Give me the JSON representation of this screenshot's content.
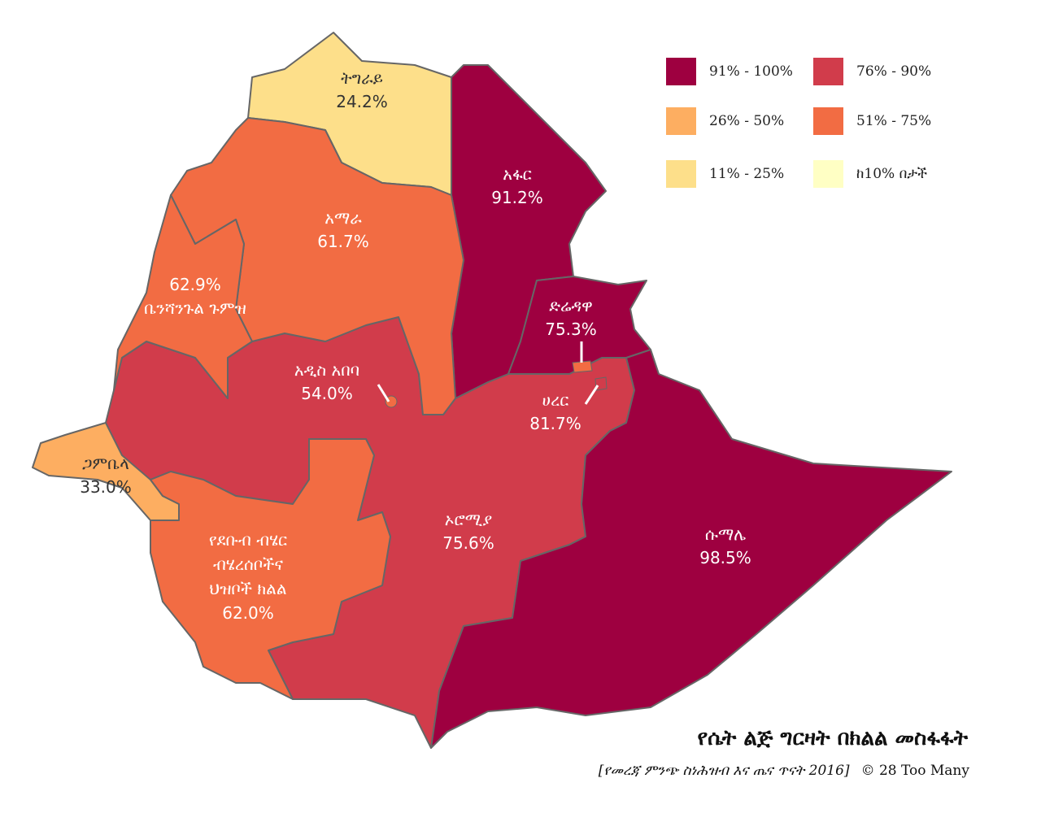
{
  "colors": {
    "c91_100": "#9e0040",
    "c76_90": "#d13c4b",
    "c51_75": "#f26c43",
    "c26_50": "#fdae61",
    "c11_25": "#fddf8a",
    "c0_10": "#ffffc4"
  },
  "legend": [
    {
      "label": "91% - 100%",
      "color": "#9e0040"
    },
    {
      "label": "76% - 90%",
      "color": "#d13c4b"
    },
    {
      "label": "26% - 50%",
      "color": "#fdae61"
    },
    {
      "label": "51% - 75%",
      "color": "#f26c43"
    },
    {
      "label": "11% - 25%",
      "color": "#fddf8a"
    },
    {
      "label": "ከ10% በታች",
      "color": "#ffffc4"
    }
  ],
  "regions": {
    "tigray": {
      "name": "ትግራይ",
      "value": "24.2%"
    },
    "afar": {
      "name": "አፋር",
      "value": "91.2%"
    },
    "amhara": {
      "name": "አማራ",
      "value": "61.7%"
    },
    "benishangul": {
      "name": "ቤንሻንጉል ጉምዝ",
      "value": "62.9%"
    },
    "addis": {
      "name": "አዲስ አበባ",
      "value": "54.0%"
    },
    "dire_dawa": {
      "name": "ድሬዳዋ",
      "value": "75.3%"
    },
    "harari": {
      "name": "ሀረር",
      "value": "81.7%"
    },
    "gambela": {
      "name": "ጋምቤላ",
      "value": "33.0%"
    },
    "oromia": {
      "name": "ኦሮሚያ",
      "value": "75.6%"
    },
    "somali": {
      "name": "ሱማሌ",
      "value": "98.5%"
    },
    "snnpr": {
      "name_line1": "የደቡብ ብሄር",
      "name_line2": "ብሄረሰቦችና",
      "name_line3": "ህዝቦች ክልል",
      "value": "62.0%"
    }
  },
  "title": "የሴት ልጅ ግርዛት በክልል መስፋፋት",
  "source": "[የመረጃ ምንጭ ስነሕዝብ እና ጤና ጥናት 2016]",
  "credit": "© 28 Too Many"
}
